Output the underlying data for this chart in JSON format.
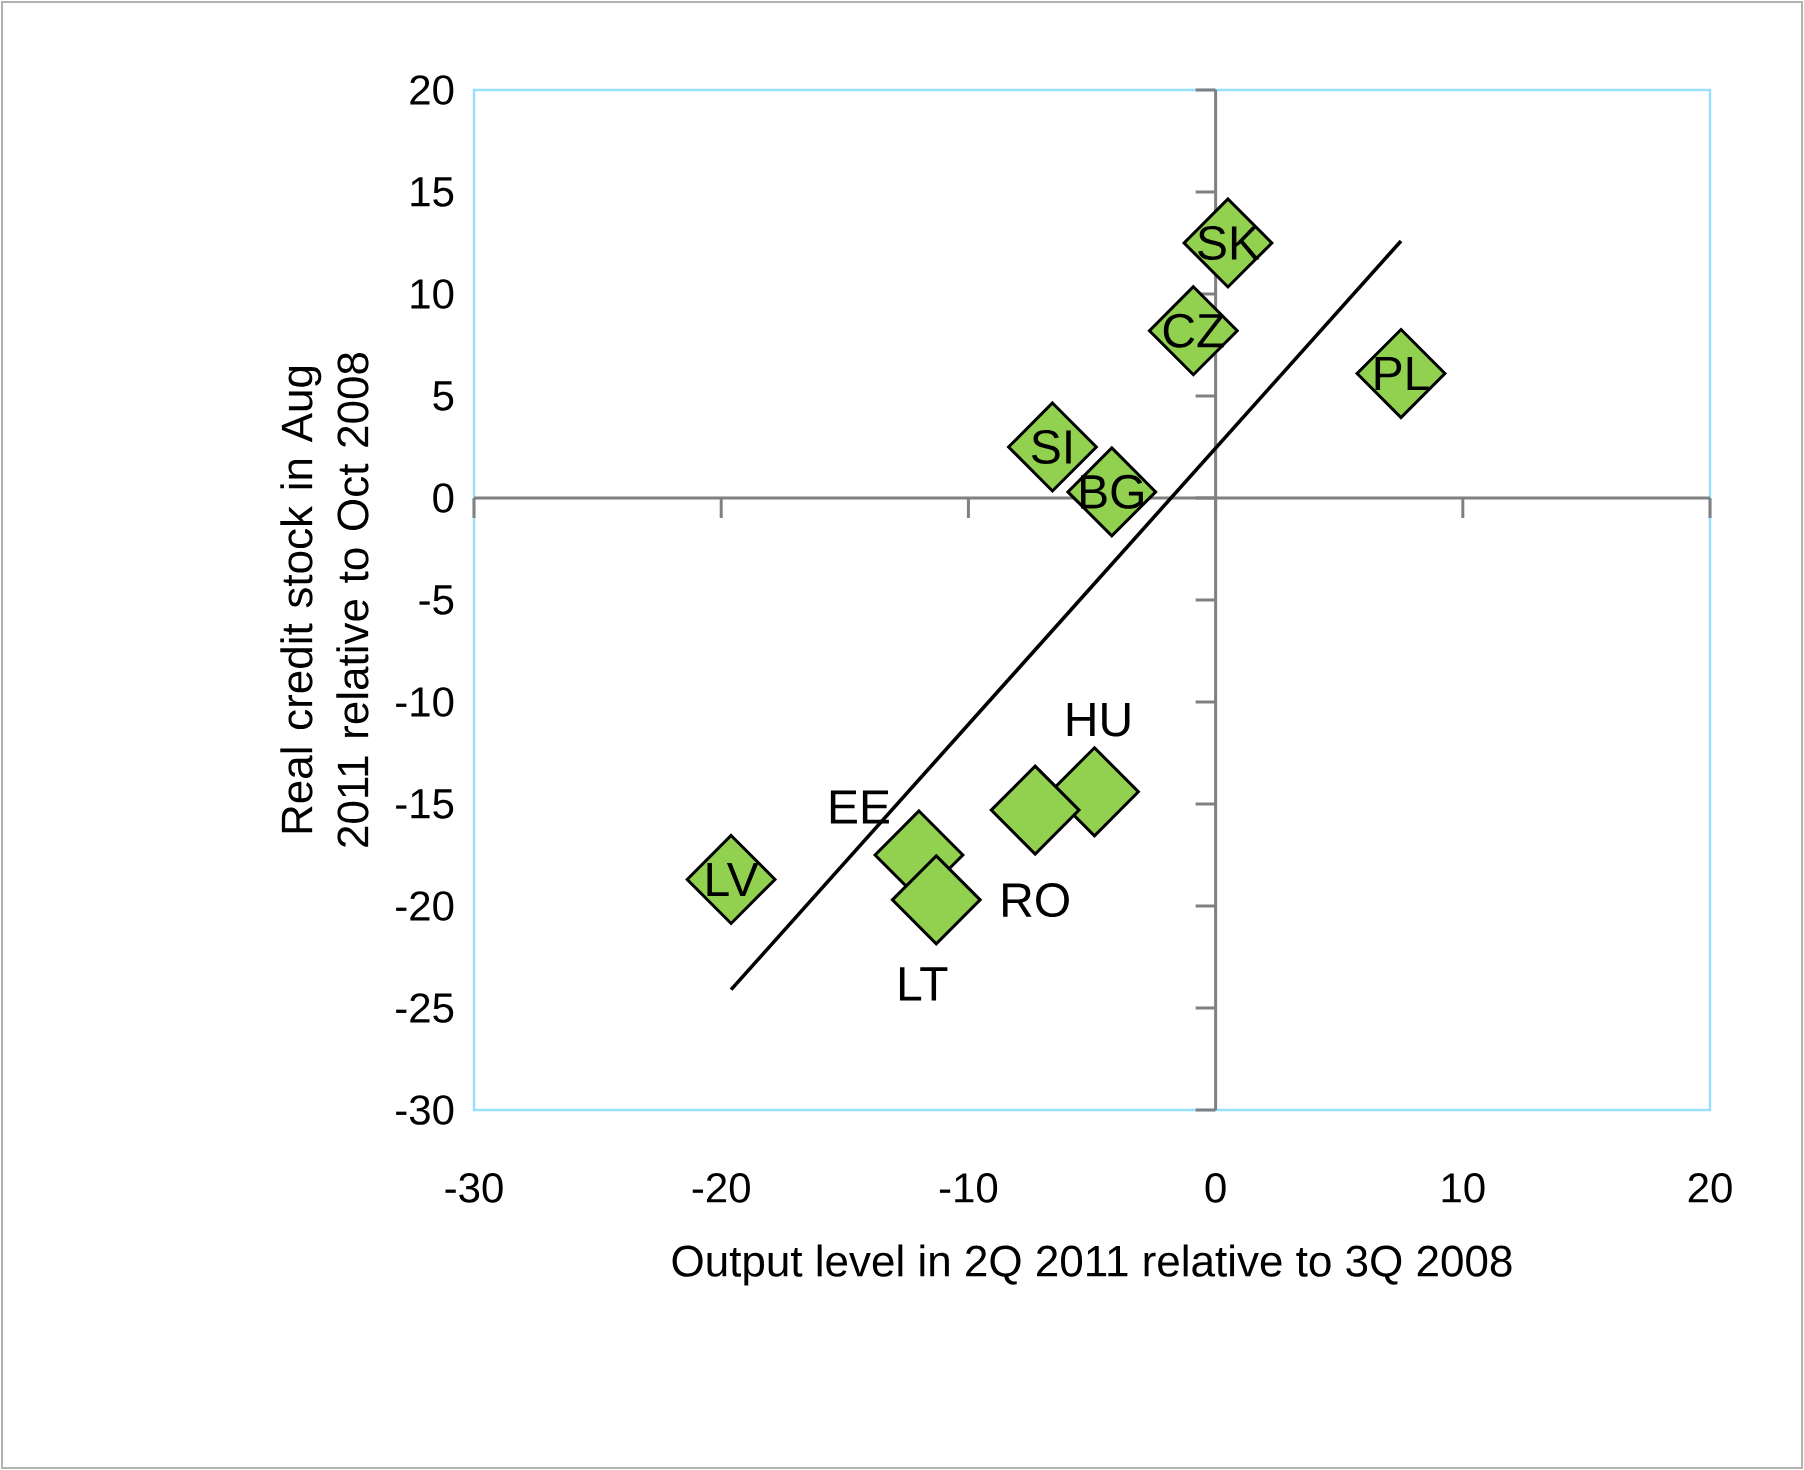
{
  "chart_data": {
    "type": "scatter",
    "xlabel": "Output level in 2Q 2011 relative to 3Q 2008",
    "ylabel": "Real credit stock in Aug 2011 relative to Oct 2008",
    "xlim": [
      -30,
      20
    ],
    "ylim": [
      -30,
      20
    ],
    "xticks": [
      -30,
      -20,
      -10,
      0,
      10,
      20
    ],
    "yticks": [
      -30,
      -25,
      -20,
      -15,
      -10,
      -5,
      0,
      5,
      10,
      15,
      20
    ],
    "series": [
      {
        "color": "#92d050",
        "marker": "diamond",
        "x": [
          0.5,
          -0.9,
          7.5,
          -6.6,
          -4.2,
          -4.9,
          -7.3,
          -12.0,
          -11.3,
          -19.6
        ],
        "values": [
          12.5,
          8.2,
          6.1,
          2.5,
          0.3,
          -14.4,
          -15.3,
          -17.5,
          -19.7,
          -18.7
        ]
      },
      {
        "type": "line",
        "color": "#000000",
        "x": [
          -19.6,
          7.5
        ],
        "values": [
          -24.1,
          12.6
        ]
      }
    ],
    "annotations": [
      {
        "text": "SK",
        "x": 0.5,
        "y": 12.5
      },
      {
        "text": "CZ",
        "x": -0.9,
        "y": 8.2
      },
      {
        "text": "PL",
        "x": 7.5,
        "y": 6.1
      },
      {
        "text": "SI",
        "x": -6.6,
        "y": 2.5
      },
      {
        "text": "BG",
        "x": -4.2,
        "y": 0.3
      },
      {
        "text": "HU",
        "x": -4.9,
        "y": -14.4
      },
      {
        "text": "RO",
        "x": -7.3,
        "y": -15.3
      },
      {
        "text": "EE",
        "x": -12.0,
        "y": -17.5
      },
      {
        "text": "LT",
        "x": -11.3,
        "y": -19.7
      },
      {
        "text": "LV",
        "x": -19.6,
        "y": -18.7
      }
    ]
  }
}
